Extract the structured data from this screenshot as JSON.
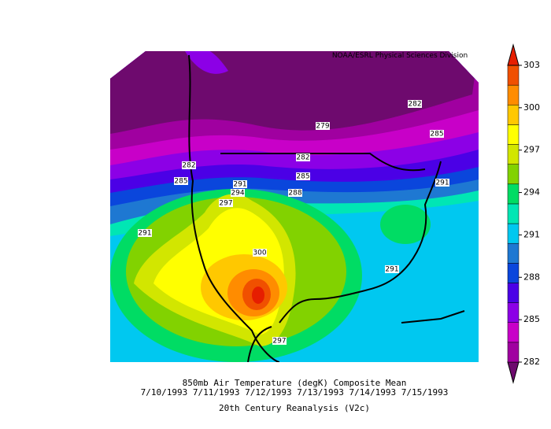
{
  "credit": "NOAA/ESRL Physical Sciences Division",
  "contour_labels": [
    279,
    282,
    285,
    282,
    285,
    288,
    282,
    285,
    291,
    294,
    297,
    291,
    291,
    300,
    291,
    297
  ],
  "colorbar": {
    "lim": [
      282,
      303
    ],
    "ticks": [
      282,
      285,
      288,
      291,
      294,
      297,
      300,
      303
    ],
    "colors": [
      "#6e0a6e",
      "#a000a0",
      "#c800c8",
      "#8c00e6",
      "#4b00e6",
      "#0a46dc",
      "#1e78d2",
      "#00c8f0",
      "#00e6b4",
      "#00dc64",
      "#82d200",
      "#d2e600",
      "#ffff00",
      "#ffc800",
      "#ff8c00",
      "#f05000",
      "#e61e00"
    ]
  },
  "caption": {
    "title": "850mb Air Temperature (degK) Composite Mean",
    "dates": "7/10/1993 7/11/1993 7/12/1993 7/13/1993 7/14/1993 7/15/1993",
    "source": "20th Century Reanalysis (V2c)"
  }
}
